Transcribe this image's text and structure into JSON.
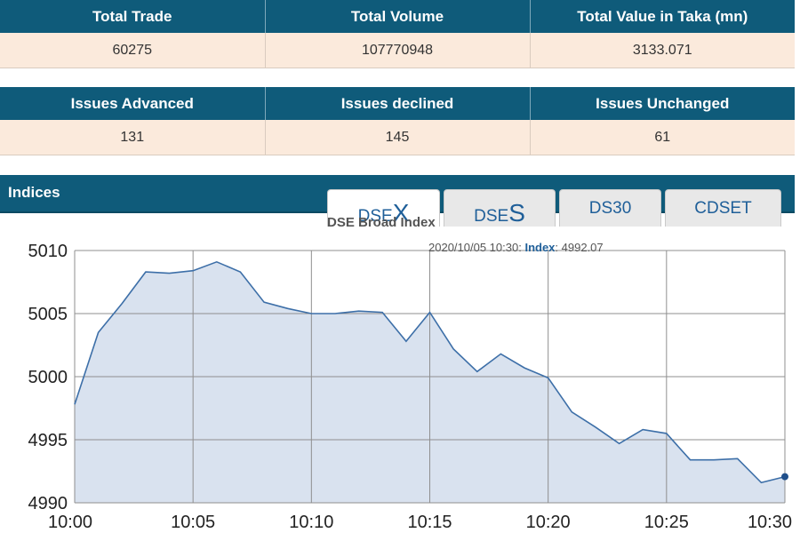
{
  "summary": {
    "headers": [
      "Total Trade",
      "Total Volume",
      "Total Value in Taka (mn)"
    ],
    "values": [
      "60275",
      "107770948",
      "3133.071"
    ]
  },
  "issues": {
    "headers": [
      "Issues Advanced",
      "Issues declined",
      "Issues Unchanged"
    ],
    "values": [
      "131",
      "145",
      "61"
    ]
  },
  "indices": {
    "title": "Indices",
    "tabs": [
      {
        "prefix": "DSE",
        "suffix": "X"
      },
      {
        "prefix": "DSE",
        "suffix": "S"
      },
      {
        "prefix": "DS30",
        "suffix": ""
      },
      {
        "prefix": "CDSET",
        "suffix": ""
      }
    ],
    "active_tab": 0
  },
  "tooltip": {
    "datetime": "2020/10/05 10:30:",
    "label": "Index",
    "value": ": 4992.07"
  },
  "colors": {
    "header_bg": "#0f5b7a",
    "row_bg": "#fbeadc",
    "line": "#3d6fa8",
    "area": "#d9e2ef"
  },
  "chart_data": {
    "type": "area",
    "title": "DSE Broad Index",
    "xlabel": "",
    "ylabel": "",
    "x": [
      "10:00",
      "10:01",
      "10:02",
      "10:03",
      "10:04",
      "10:05",
      "10:06",
      "10:07",
      "10:08",
      "10:09",
      "10:10",
      "10:11",
      "10:12",
      "10:13",
      "10:14",
      "10:15",
      "10:16",
      "10:17",
      "10:18",
      "10:19",
      "10:20",
      "10:21",
      "10:22",
      "10:23",
      "10:24",
      "10:25",
      "10:26",
      "10:27",
      "10:28",
      "10:29",
      "10:30"
    ],
    "series": [
      {
        "values": [
          4997.8,
          5003.5,
          5005.8,
          5008.3,
          5008.2,
          5008.4,
          5009.1,
          5008.3,
          5005.9,
          5005.4,
          5005.0,
          5005.0,
          5005.2,
          5005.1,
          5002.8,
          5005.1,
          5002.2,
          5000.4,
          5001.8,
          5000.7,
          4999.9,
          4997.2,
          4996.0,
          4994.7,
          4995.8,
          4995.5,
          4993.4,
          4993.4,
          4993.5,
          4991.6,
          4992.07
        ]
      }
    ],
    "xticks": [
      "10:00",
      "10:05",
      "10:10",
      "10:15",
      "10:20",
      "10:25",
      "10:30"
    ],
    "yticks": [
      "4990",
      "4995",
      "5000",
      "5005",
      "5010"
    ],
    "ylim": [
      4990,
      5010
    ],
    "xlim": [
      "10:00",
      "10:30"
    ],
    "grid": true,
    "legend": "none"
  }
}
